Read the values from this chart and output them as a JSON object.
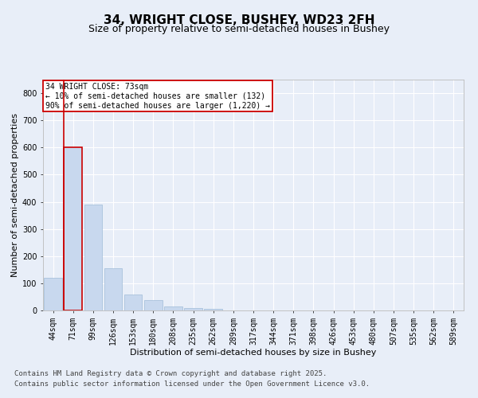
{
  "title": "34, WRIGHT CLOSE, BUSHEY, WD23 2FH",
  "subtitle": "Size of property relative to semi-detached houses in Bushey",
  "xlabel": "Distribution of semi-detached houses by size in Bushey",
  "ylabel": "Number of semi-detached properties",
  "categories": [
    "44sqm",
    "71sqm",
    "99sqm",
    "126sqm",
    "153sqm",
    "180sqm",
    "208sqm",
    "235sqm",
    "262sqm",
    "289sqm",
    "317sqm",
    "344sqm",
    "371sqm",
    "398sqm",
    "426sqm",
    "453sqm",
    "480sqm",
    "507sqm",
    "535sqm",
    "562sqm",
    "589sqm"
  ],
  "values": [
    120,
    600,
    390,
    155,
    60,
    38,
    14,
    10,
    5,
    0,
    0,
    0,
    0,
    0,
    0,
    0,
    0,
    0,
    0,
    0,
    0
  ],
  "bar_color": "#c8d8ee",
  "bar_edge_color": "#a0bcd8",
  "highlight_bar_index": 1,
  "highlight_color": "#c8d8ee",
  "highlight_edge_color": "#cc0000",
  "annotation_text": "34 WRIGHT CLOSE: 73sqm\n← 10% of semi-detached houses are smaller (132)\n90% of semi-detached houses are larger (1,220) →",
  "annotation_box_color": "#ffffff",
  "annotation_box_edge": "#cc0000",
  "ylim": [
    0,
    850
  ],
  "yticks": [
    0,
    100,
    200,
    300,
    400,
    500,
    600,
    700,
    800
  ],
  "background_color": "#e8eef8",
  "plot_bg_color": "#e8eef8",
  "footer_line1": "Contains HM Land Registry data © Crown copyright and database right 2025.",
  "footer_line2": "Contains public sector information licensed under the Open Government Licence v3.0.",
  "title_fontsize": 11,
  "subtitle_fontsize": 9,
  "axis_label_fontsize": 8,
  "tick_fontsize": 7,
  "annotation_fontsize": 7,
  "footer_fontsize": 6.5
}
